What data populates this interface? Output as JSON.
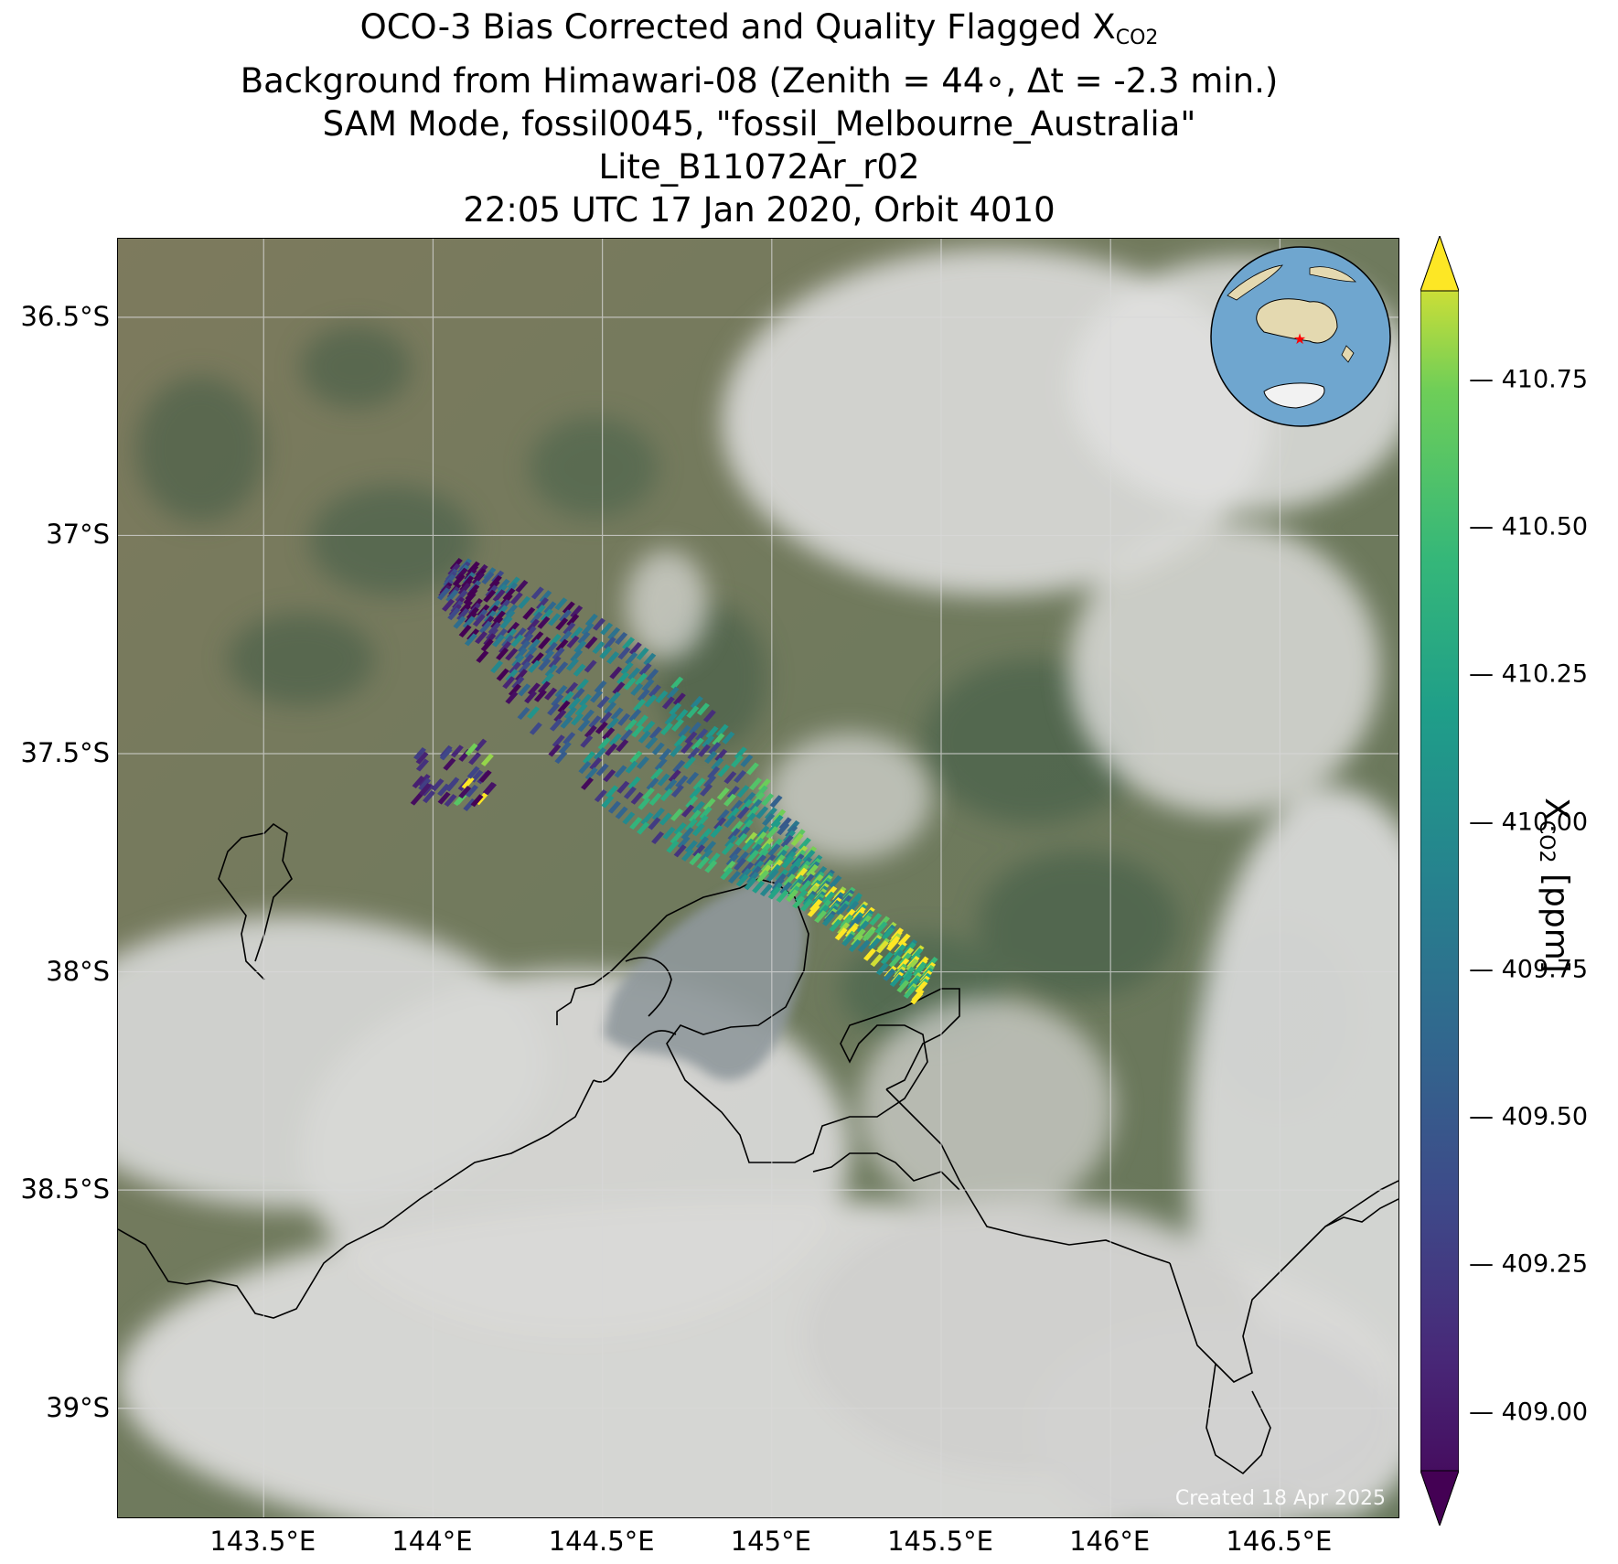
{
  "title": {
    "line1_prefix": "OCO-3 Bias Corrected and Quality Flagged X",
    "line1_sub": "CO2",
    "line2": "Background from Himawari-08 (Zenith = 44∘, Δt = -2.3 min.)",
    "line3": "SAM Mode, fossil0045, \"fossil_Melbourne_Australia\"",
    "line4": "Lite_B11072Ar_r02",
    "line5": "22:05 UTC 17 Jan 2020, Orbit 4010"
  },
  "map": {
    "lon_range": [
      143.07,
      146.85
    ],
    "lat_range": [
      -39.25,
      -36.32
    ],
    "lon_ticks": [
      {
        "value": 143.5,
        "label": "143.5°E"
      },
      {
        "value": 144.0,
        "label": "144°E"
      },
      {
        "value": 144.5,
        "label": "144.5°E"
      },
      {
        "value": 145.0,
        "label": "145°E"
      },
      {
        "value": 145.5,
        "label": "145.5°E"
      },
      {
        "value": 146.0,
        "label": "146°E"
      },
      {
        "value": 146.5,
        "label": "146.5°E"
      }
    ],
    "lat_ticks": [
      {
        "value": -36.5,
        "label": "36.5°S"
      },
      {
        "value": -37.0,
        "label": "37°S"
      },
      {
        "value": -37.5,
        "label": "37.5°S"
      },
      {
        "value": -38.0,
        "label": "38°S"
      },
      {
        "value": -38.5,
        "label": "38.5°S"
      },
      {
        "value": -39.0,
        "label": "39°S"
      }
    ],
    "grid": true,
    "credit": "Created 18 Apr 2025",
    "colors": {
      "coastline": "#000000",
      "gridline": "#d8d8d8",
      "land": "#77805f",
      "cloud": "#d9d9d7",
      "water": "#8d959a"
    }
  },
  "chart_data": {
    "type": "scatter",
    "description_units": "XCO2 soundings (lon, lat, ppm)",
    "colorbar": {
      "label_prefix": "X",
      "label_sub": "CO2",
      "label_suffix": " [ppm]",
      "vmin": 408.9,
      "vmax": 410.9,
      "ticks": [
        "409.00",
        "409.25",
        "409.50",
        "409.75",
        "410.00",
        "410.25",
        "410.50",
        "410.75"
      ],
      "tick_values": [
        409.0,
        409.25,
        409.5,
        409.75,
        410.0,
        410.25,
        410.5,
        410.75
      ],
      "extend": "both",
      "colormap": "viridis"
    },
    "swath": {
      "start_lon": 144.05,
      "start_lat": -37.1,
      "end_lon": 145.45,
      "end_lat": -38.02,
      "trend": "values increase from northwest (~409.0) to southeast (~410.8)"
    }
  },
  "inset": {
    "ocean": "#6fa6cf",
    "land": "#e4d9b0",
    "marker": "#ff0000",
    "marker_symbol": "star"
  }
}
